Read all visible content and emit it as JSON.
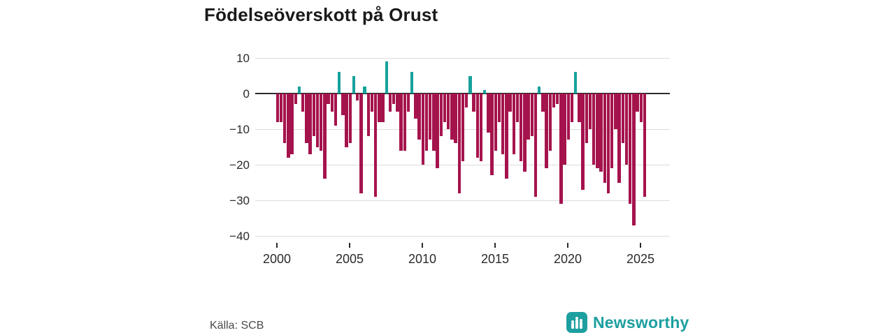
{
  "title": "Födelseöverskott på Orust",
  "source": "Källa: SCB",
  "brand": {
    "name": "Newsworthy",
    "color": "#1d9fa0",
    "icon": "bar-chart-icon"
  },
  "chart_data": {
    "type": "bar",
    "title": "Födelseöverskott på Orust",
    "xlabel": "",
    "ylabel": "",
    "frequency": "quarterly",
    "start": "2000Q1",
    "x_tick_labels": [
      "2000",
      "2005",
      "2010",
      "2015",
      "2020",
      "2025"
    ],
    "y_tick_labels": [
      "10",
      "0",
      "−10",
      "−20",
      "−30",
      "−40"
    ],
    "y_tick_values": [
      10,
      0,
      -10,
      -20,
      -30,
      -40
    ],
    "ylim": [
      -40,
      10
    ],
    "grid": "horizontal",
    "legend": "none",
    "colors": {
      "negative": "#a5134d",
      "positive": "#18a19c"
    },
    "series": [
      {
        "name": "Födelseöverskott",
        "values": [
          -8,
          -8,
          -14,
          -18,
          -17,
          -3,
          2,
          -5,
          -14,
          -17,
          -12,
          -15,
          -16,
          -24,
          -3,
          -5,
          -9,
          6,
          -6,
          -15,
          -14,
          5,
          -2,
          -28,
          2,
          -12,
          -5,
          -29,
          -8,
          -8,
          9,
          -5,
          -3,
          -5,
          -16,
          -16,
          -5,
          6,
          -7,
          -13,
          -20,
          -16,
          -13,
          -16,
          -21,
          -12,
          -8,
          -10,
          -13,
          -14,
          -28,
          -19,
          -4,
          5,
          -5,
          -18,
          -19,
          1,
          -11,
          -23,
          -16,
          -8,
          -17,
          -24,
          -5,
          -17,
          -8,
          -19,
          -22,
          -13,
          -12,
          -29,
          2,
          -5,
          -21,
          -16,
          -4,
          -3,
          -31,
          -20,
          -13,
          -8,
          6,
          -8,
          -27,
          -14,
          -10,
          -20,
          -21,
          -22,
          -25,
          -28,
          -21,
          -10,
          -25,
          -14,
          -20,
          -31,
          -37,
          -5,
          -8,
          -29
        ]
      }
    ]
  }
}
